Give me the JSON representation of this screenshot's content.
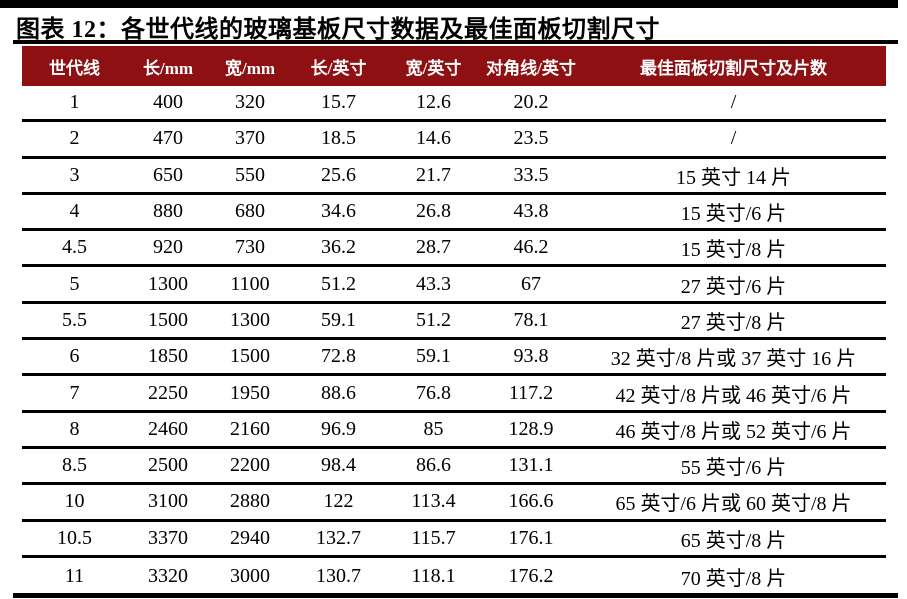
{
  "title": "图表 12：各世代线的玻璃基板尺寸数据及最佳面板切割尺寸",
  "colors": {
    "header_bg": "#8e1013",
    "header_text": "#ffffff",
    "rule": "#000000",
    "body_text": "#000000",
    "background": "#ffffff"
  },
  "table": {
    "columns": [
      "世代线",
      "长/mm",
      "宽/mm",
      "长/英寸",
      "宽/英寸",
      "对角线/英寸",
      "最佳面板切割尺寸及片数"
    ],
    "rows": [
      [
        "1",
        "400",
        "320",
        "15.7",
        "12.6",
        "20.2",
        "/"
      ],
      [
        "2",
        "470",
        "370",
        "18.5",
        "14.6",
        "23.5",
        "/"
      ],
      [
        "3",
        "650",
        "550",
        "25.6",
        "21.7",
        "33.5",
        "15 英寸 14 片"
      ],
      [
        "4",
        "880",
        "680",
        "34.6",
        "26.8",
        "43.8",
        "15 英寸/6 片"
      ],
      [
        "4.5",
        "920",
        "730",
        "36.2",
        "28.7",
        "46.2",
        "15 英寸/8 片"
      ],
      [
        "5",
        "1300",
        "1100",
        "51.2",
        "43.3",
        "67",
        "27 英寸/6 片"
      ],
      [
        "5.5",
        "1500",
        "1300",
        "59.1",
        "51.2",
        "78.1",
        "27 英寸/8 片"
      ],
      [
        "6",
        "1850",
        "1500",
        "72.8",
        "59.1",
        "93.8",
        "32 英寸/8 片或 37 英寸 16 片"
      ],
      [
        "7",
        "2250",
        "1950",
        "88.6",
        "76.8",
        "117.2",
        "42 英寸/8 片或 46 英寸/6 片"
      ],
      [
        "8",
        "2460",
        "2160",
        "96.9",
        "85",
        "128.9",
        "46 英寸/8 片或 52 英寸/6 片"
      ],
      [
        "8.5",
        "2500",
        "2200",
        "98.4",
        "86.6",
        "131.1",
        "55 英寸/6 片"
      ],
      [
        "10",
        "3100",
        "2880",
        "122",
        "113.4",
        "166.6",
        "65 英寸/6 片或 60 英寸/8 片"
      ],
      [
        "10.5",
        "3370",
        "2940",
        "132.7",
        "115.7",
        "176.1",
        "65 英寸/8 片"
      ],
      [
        "11",
        "3320",
        "3000",
        "130.7",
        "118.1",
        "176.2",
        "70 英寸/8 片"
      ]
    ]
  }
}
